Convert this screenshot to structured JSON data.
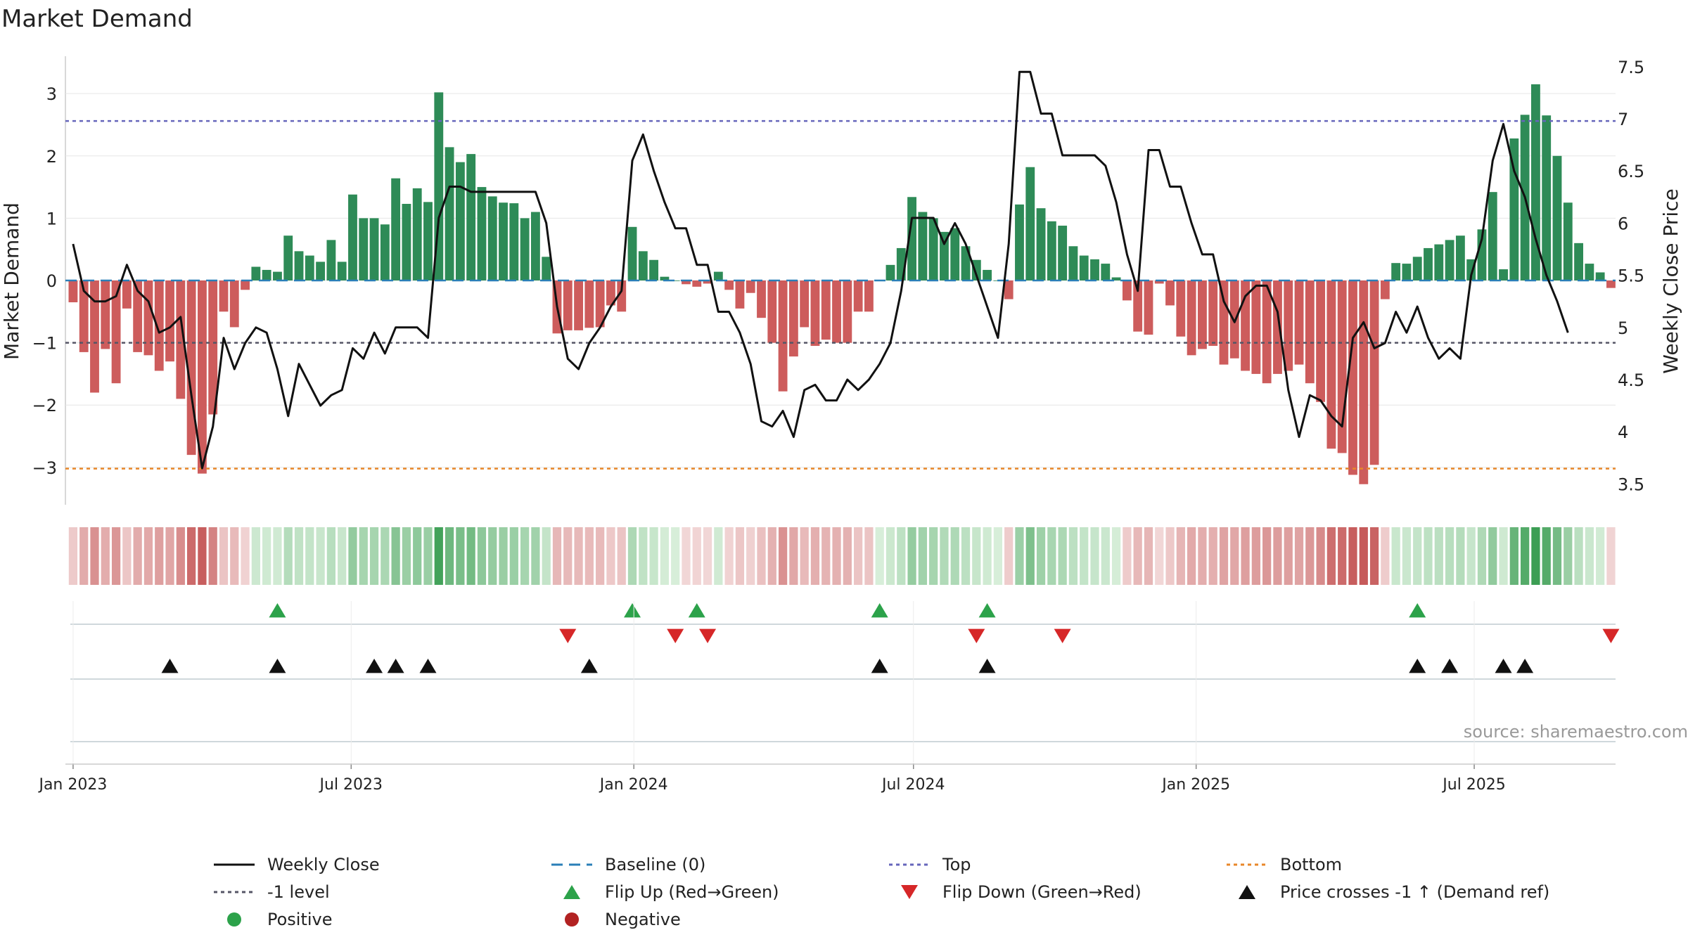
{
  "chart_data": {
    "type": "bar",
    "title": "Market Demand",
    "ylabel": "Market Demand",
    "y2label": "Weekly Close Price",
    "ylim": [
      -3.6,
      3.6
    ],
    "y2lim": [
      3.3,
      7.6
    ],
    "yticks": [
      -3,
      -2,
      -1,
      0,
      1,
      2,
      3
    ],
    "y2ticks": [
      3.5,
      4,
      4.5,
      5,
      5.5,
      6,
      6.5,
      7,
      7.5
    ],
    "x_start": "2023-01-01",
    "x_step_days": 7,
    "x_end": "2025-09-28",
    "xticks": [
      {
        "date": "2023-01-01",
        "label": "Jan 2023"
      },
      {
        "date": "2023-07-01",
        "label": "Jul 2023"
      },
      {
        "date": "2024-01-01",
        "label": "Jan 2024"
      },
      {
        "date": "2024-07-01",
        "label": "Jul 2024"
      },
      {
        "date": "2025-01-01",
        "label": "Jan 2025"
      },
      {
        "date": "2025-07-01",
        "label": "Jul 2025"
      }
    ],
    "reference_lines": [
      {
        "name": "Top",
        "value": 2.56,
        "color": "#6666bb"
      },
      {
        "name": "-1 level",
        "value": -1,
        "color": "#555566"
      },
      {
        "name": "Bottom",
        "value": -3.02,
        "color": "#e8872a"
      },
      {
        "name": "Baseline (0)",
        "value": 0,
        "color": "#2a7fb8"
      }
    ],
    "series": [
      {
        "name": "Market Demand",
        "values": [
          -0.35,
          -1.15,
          -1.8,
          -1.1,
          -1.65,
          -0.45,
          -1.15,
          -1.2,
          -1.45,
          -1.3,
          -1.9,
          -2.8,
          -3.1,
          -2.15,
          -0.5,
          -0.75,
          -0.15,
          0.22,
          0.17,
          0.14,
          0.72,
          0.47,
          0.4,
          0.3,
          0.65,
          0.3,
          1.38,
          1.0,
          1.0,
          0.9,
          1.64,
          1.23,
          1.48,
          1.26,
          3.02,
          2.14,
          1.9,
          2.03,
          1.5,
          1.35,
          1.25,
          1.24,
          1.0,
          1.1,
          0.38,
          -0.85,
          -0.8,
          -0.8,
          -0.76,
          -0.75,
          -0.4,
          -0.5,
          0.86,
          0.47,
          0.33,
          0.06,
          0.0,
          -0.06,
          -0.1,
          -0.05,
          0.14,
          -0.15,
          -0.45,
          -0.2,
          -0.6,
          -1.0,
          -1.78,
          -1.22,
          -0.75,
          -1.05,
          -0.95,
          -1.0,
          -1.0,
          -0.5,
          -0.5,
          0.0,
          0.25,
          0.52,
          1.34,
          1.1,
          1.0,
          0.78,
          0.84,
          0.55,
          0.33,
          0.17,
          0.0,
          -0.3,
          1.22,
          1.82,
          1.16,
          0.95,
          0.88,
          0.55,
          0.4,
          0.34,
          0.27,
          0.05,
          -0.32,
          -0.82,
          -0.87,
          -0.05,
          -0.4,
          -0.9,
          -1.2,
          -1.1,
          -1.05,
          -1.35,
          -1.25,
          -1.45,
          -1.5,
          -1.65,
          -1.5,
          -1.45,
          -1.35,
          -1.65,
          -1.95,
          -2.7,
          -2.77,
          -3.12,
          -3.27,
          -2.96,
          -0.3,
          0.28,
          0.27,
          0.38,
          0.52,
          0.58,
          0.65,
          0.72,
          0.34,
          0.82,
          1.42,
          0.18,
          2.28,
          2.66,
          3.15,
          2.65,
          2.0,
          1.25,
          0.6,
          0.27,
          0.13,
          -0.12
        ]
      },
      {
        "name": "Weekly Close",
        "values": [
          5.8,
          5.35,
          5.25,
          5.25,
          5.3,
          5.6,
          5.35,
          5.25,
          4.95,
          5.0,
          5.1,
          4.35,
          3.65,
          4.05,
          4.9,
          4.6,
          4.85,
          5.0,
          4.95,
          4.6,
          4.15,
          4.65,
          4.45,
          4.25,
          4.35,
          4.4,
          4.8,
          4.7,
          4.95,
          4.75,
          5.0,
          5.0,
          5.0,
          4.9,
          6.05,
          6.35,
          6.35,
          6.3,
          6.3,
          6.3,
          6.3,
          6.3,
          6.3,
          6.3,
          6.0,
          5.2,
          4.7,
          4.6,
          4.85,
          5.0,
          5.2,
          5.35,
          6.6,
          6.85,
          6.5,
          6.2,
          5.95,
          5.95,
          5.6,
          5.6,
          5.15,
          5.15,
          4.95,
          4.65,
          4.1,
          4.05,
          4.2,
          3.95,
          4.4,
          4.45,
          4.3,
          4.3,
          4.5,
          4.4,
          4.5,
          4.65,
          4.85,
          5.35,
          6.05,
          6.05,
          6.05,
          5.8,
          6.0,
          5.8,
          5.5,
          5.2,
          4.9,
          5.8,
          7.45,
          7.45,
          7.05,
          7.05,
          6.65,
          6.65,
          6.65,
          6.65,
          6.55,
          6.2,
          5.7,
          5.35,
          6.7,
          6.7,
          6.35,
          6.35,
          6.0,
          5.7,
          5.7,
          5.25,
          5.05,
          5.3,
          5.4,
          5.4,
          5.15,
          4.4,
          3.95,
          4.35,
          4.3,
          4.15,
          4.05,
          4.9,
          5.05,
          4.8,
          4.85,
          5.15,
          4.95,
          5.2,
          4.9,
          4.7,
          4.8,
          4.7,
          5.5,
          5.85,
          6.6,
          6.95,
          6.5,
          6.25,
          5.85,
          5.5,
          5.25,
          4.95
        ]
      }
    ],
    "flip_up": [
      "2023-05-14",
      "2023-12-31",
      "2024-02-11",
      "2024-06-09",
      "2024-08-18",
      "2025-05-25"
    ],
    "flip_down": [
      "2023-11-19",
      "2024-01-28",
      "2024-02-18",
      "2024-08-11",
      "2024-10-06",
      "2025-09-28"
    ],
    "price_crosses": [
      "2023-03-05",
      "2023-05-14",
      "2023-07-16",
      "2023-07-30",
      "2023-08-20",
      "2023-12-03",
      "2024-06-09",
      "2024-08-18",
      "2025-05-25",
      "2025-06-15",
      "2025-07-20",
      "2025-08-03"
    ],
    "source": "source: sharemaestro.com",
    "legend": [
      {
        "label": "Weekly Close",
        "kind": "line-solid",
        "color": "#111111"
      },
      {
        "label": "Baseline (0)",
        "kind": "line-dash",
        "color": "#2a7fb8"
      },
      {
        "label": "Top",
        "kind": "line-dot",
        "color": "#6666bb"
      },
      {
        "label": "Bottom",
        "kind": "line-dot",
        "color": "#e8872a"
      },
      {
        "label": "-1 level",
        "kind": "line-dot",
        "color": "#555566"
      },
      {
        "label": "Flip Up (Red→Green)",
        "kind": "tri-up",
        "color": "#2ca24a"
      },
      {
        "label": "Flip Down (Green→Red)",
        "kind": "tri-down",
        "color": "#d62728"
      },
      {
        "label": "Price crosses -1 ↑ (Demand ref)",
        "kind": "tri-up",
        "color": "#111111"
      },
      {
        "label": "Positive",
        "kind": "dot",
        "color": "#2ca24a"
      },
      {
        "label": "Negative",
        "kind": "dot",
        "color": "#b22222"
      }
    ],
    "colors": {
      "positive_bar": "#2e8b57",
      "negative_bar": "#cd5c5c",
      "price_line": "#111111"
    }
  }
}
